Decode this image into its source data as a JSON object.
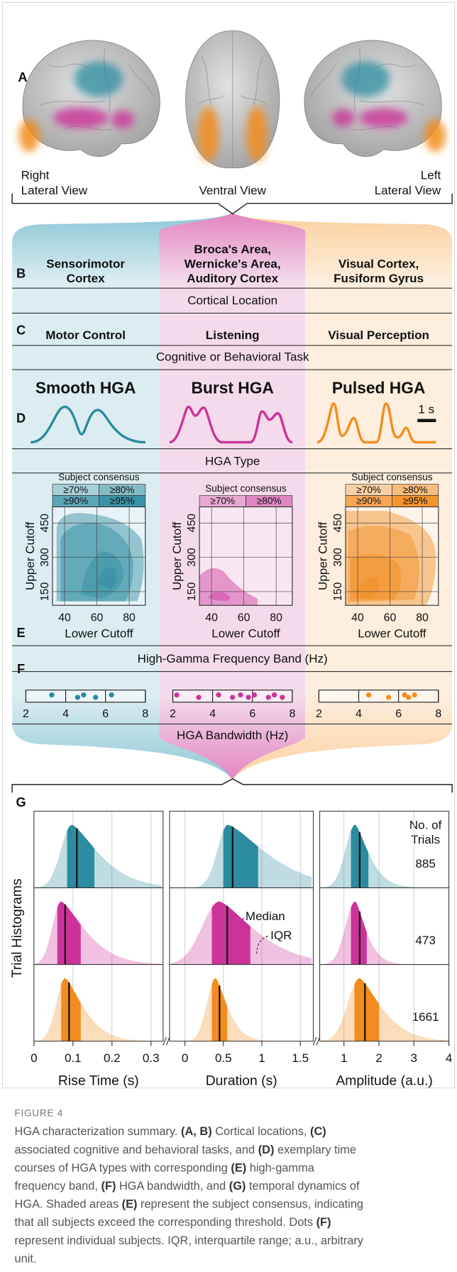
{
  "panel_labels": [
    "A",
    "B",
    "C",
    "D",
    "E",
    "F",
    "G"
  ],
  "views": [
    [
      "Right",
      "Lateral View"
    ],
    [
      "Ventral View"
    ],
    [
      "Left",
      "Lateral View"
    ]
  ],
  "row_captions": {
    "location": "Cortical Location",
    "task": "Cognitive or Behavioral Task",
    "hga_type": "HGA Type",
    "band": "High-Gamma Frequency Band (Hz)",
    "bandwidth": "HGA Bandwidth (Hz)"
  },
  "scale_bar": "1 s",
  "consensus_title": "Subject consensus",
  "band_axes": {
    "y_label": "Upper Cutoff",
    "y_ticks": [
      150,
      300,
      450
    ],
    "x_label": "Lower Cutoff",
    "x_ticks": [
      40,
      60,
      80
    ]
  },
  "bandwidth_axis": {
    "ticks": [
      2,
      4,
      6,
      8
    ]
  },
  "columns": [
    {
      "location": [
        "Sensorimotor",
        "Cortex"
      ],
      "task": "Motor Control",
      "hga_type": "Smooth HGA",
      "color": "#2c8ba0",
      "consensus_levels": [
        "≥70%",
        "≥80%",
        "≥90%",
        "≥95%"
      ],
      "bandwidth_subjects": [
        3.3,
        4.6,
        4.9,
        5.5,
        6.3
      ],
      "trials": 885,
      "histograms": [
        {
          "median": 0.11,
          "iqr": [
            0.085,
            0.155
          ]
        },
        {
          "median": 0.62,
          "iqr": [
            0.5,
            0.95
          ]
        },
        {
          "median": 1.45,
          "iqr": [
            1.2,
            1.7
          ]
        }
      ]
    },
    {
      "location": [
        "Broca's Area,",
        "Wernicke's Area,",
        "Auditory Cortex"
      ],
      "task": "Listening",
      "hga_type": "Burst HGA",
      "color": "#cc3399",
      "consensus_levels": [
        "≥70%",
        "≥80%"
      ],
      "bandwidth_subjects": [
        2.2,
        3.3,
        4.3,
        5.0,
        5.4,
        5.8,
        6.1,
        6.8,
        7.1,
        7.5
      ],
      "trials": 473,
      "histograms": [
        {
          "median": 0.08,
          "iqr": [
            0.06,
            0.12
          ]
        },
        {
          "median": 0.55,
          "iqr": [
            0.35,
            0.85
          ]
        },
        {
          "median": 1.45,
          "iqr": [
            1.2,
            1.65
          ]
        }
      ]
    },
    {
      "location": [
        "Visual Cortex,",
        "Fusiform Gyrus"
      ],
      "task": "Visual Perception",
      "hga_type": "Pulsed HGA",
      "color": "#f28c1e",
      "consensus_levels": [
        "≥70%",
        "≥80%",
        "≥90%",
        "≥95%"
      ],
      "bandwidth_subjects": [
        4.5,
        5.5,
        6.3,
        6.5,
        6.8
      ],
      "trials": 1661,
      "histograms": [
        {
          "median": 0.09,
          "iqr": [
            0.07,
            0.12
          ]
        },
        {
          "median": 0.45,
          "iqr": [
            0.35,
            0.55
          ]
        },
        {
          "median": 1.6,
          "iqr": [
            1.3,
            2.0
          ]
        }
      ]
    }
  ],
  "histograms": {
    "y_label": "Trial Histograms",
    "trials_label": [
      "No. of",
      "Trials"
    ],
    "median_label": "Median",
    "iqr_label": "IQR",
    "panels": [
      {
        "label": "Rise Time (s)",
        "ticks": [
          0,
          0.1,
          0.2,
          0.3
        ]
      },
      {
        "label": "Duration (s)",
        "ticks": [
          0,
          0.5,
          1,
          1.5
        ]
      },
      {
        "label": "Amplitude (a.u.)",
        "ticks": [
          1,
          2,
          3,
          4
        ]
      }
    ]
  },
  "caption": {
    "label": "FIGURE 4",
    "lines": [
      [
        "HGA characterization summary. ",
        "(A, B)",
        " Cortical locations, ",
        "(C)"
      ],
      [
        "associated cognitive and behavioral tasks, and ",
        "(D)",
        " exemplary time"
      ],
      [
        "courses of HGA types with corresponding ",
        "(E)",
        " high-gamma"
      ],
      [
        "frequency band, ",
        "(F)",
        " HGA bandwidth, and ",
        "(G)",
        " temporal dynamics of"
      ],
      [
        "HGA. Shaded areas ",
        "(E)",
        " represent the subject consensus, indicating"
      ],
      [
        "that all subjects exceed the corresponding threshold. Dots ",
        "(F)"
      ],
      [
        "represent individual subjects. IQR, interquartile range; a.u., arbitrary"
      ],
      [
        "unit."
      ]
    ]
  }
}
